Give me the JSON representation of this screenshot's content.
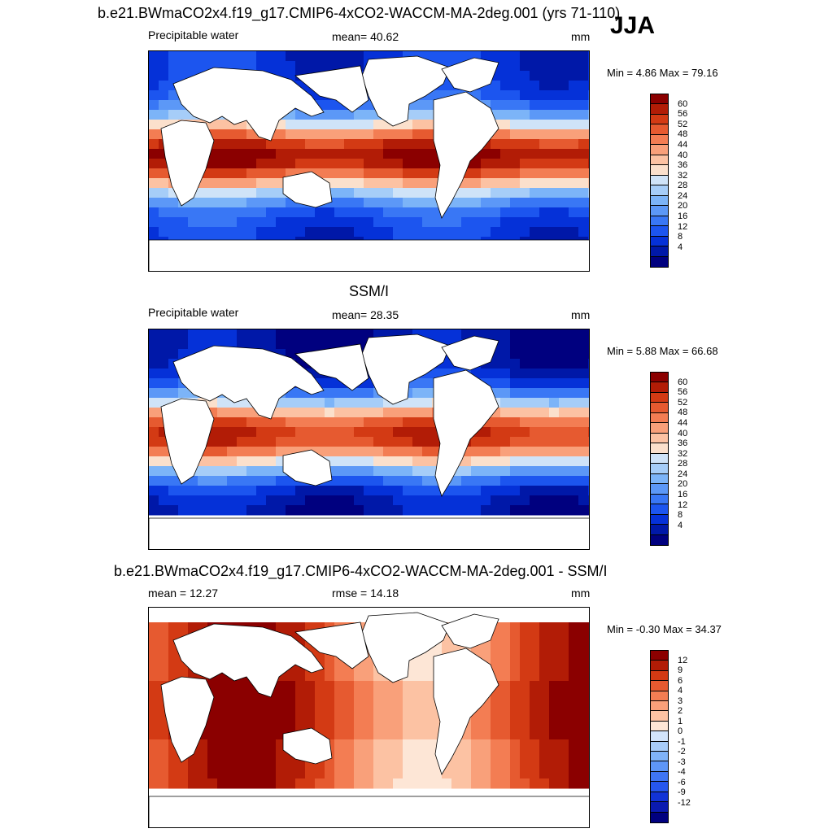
{
  "season": "JJA",
  "colors": {
    "abs_scale": [
      "#00007f",
      "#0018a8",
      "#0531d8",
      "#1c55ef",
      "#3977f5",
      "#5c98f7",
      "#7cb4f8",
      "#a6cdf8",
      "#cfe3f8",
      "#fbe0cc",
      "#fcc2a3",
      "#f9a07a",
      "#f37d53",
      "#e65a30",
      "#d33a14",
      "#b21c06",
      "#8b0000"
    ],
    "diff_scale": [
      "#00007f",
      "#0a1ab0",
      "#1233d6",
      "#2656ee",
      "#3f75f4",
      "#5e96f7",
      "#80b3f8",
      "#a8ccf8",
      "#d2e4fa",
      "#fde6d6",
      "#fcc2a3",
      "#f9a07a",
      "#f37d53",
      "#e65a30",
      "#d33a14",
      "#b21c06",
      "#8b0000"
    ]
  },
  "panels": [
    {
      "title": "b.e21.BWmaCO2x4.f19_g17.CMIP6-4xCO2-WACCM-MA-2deg.001 (yrs 71-110)",
      "left_label": "Precipitable water",
      "center_label": "mean=  40.62",
      "right_label": "mm",
      "minmax": "Min =   4.86 Max =  79.16",
      "ticks": [
        "60",
        "56",
        "52",
        "48",
        "44",
        "40",
        "36",
        "32",
        "28",
        "24",
        "20",
        "16",
        "12",
        "8",
        "4"
      ]
    },
    {
      "title": "SSM/I",
      "left_label": "Precipitable water",
      "center_label": "mean=  28.35",
      "right_label": "mm",
      "minmax": "Min =   5.88 Max =  66.68",
      "ticks": [
        "60",
        "56",
        "52",
        "48",
        "44",
        "40",
        "36",
        "32",
        "28",
        "24",
        "20",
        "16",
        "12",
        "8",
        "4"
      ]
    },
    {
      "title": "b.e21.BWmaCO2x4.f19_g17.CMIP6-4xCO2-WACCM-MA-2deg.001 - SSM/I",
      "left_label": "mean =  12.27",
      "center_label": "rmse =  14.18",
      "right_label": "mm",
      "minmax": "Min =  -0.30 Max =  34.37",
      "ticks": [
        "12",
        "9",
        "6",
        "4",
        "3",
        "2",
        "1",
        "0",
        "-1",
        "-2",
        "-3",
        "-4",
        "-6",
        "-9",
        "-12"
      ]
    }
  ]
}
